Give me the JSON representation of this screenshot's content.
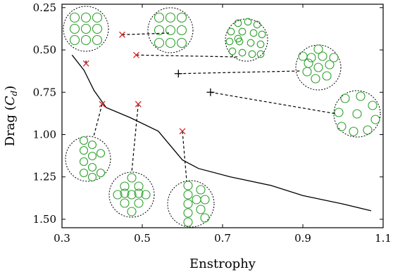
{
  "chart_data": {
    "type": "scatter",
    "title": "",
    "xlabel": "Enstrophy",
    "ylabel_main": "Drag (",
    "ylabel_symbol": "C",
    "ylabel_subscript": "d",
    "ylabel_close": ")",
    "xlim": [
      0.3,
      1.1
    ],
    "ylim": [
      1.55,
      0.23
    ],
    "y_inverted": true,
    "grid": false,
    "x_ticks": [
      0.3,
      0.5,
      0.7,
      0.9,
      1.1
    ],
    "x_tick_labels": [
      "0.3",
      "0.5",
      "0.7",
      "0.9",
      "1.1"
    ],
    "y_ticks": [
      0.25,
      0.5,
      0.75,
      1.0,
      1.25,
      1.5
    ],
    "y_tick_labels": [
      "0.25",
      "0.50",
      "0.75",
      "1.00",
      "1.25",
      "1.50"
    ],
    "frontier_line": {
      "color": "#000000",
      "points": [
        [
          0.325,
          0.53
        ],
        [
          0.355,
          0.62
        ],
        [
          0.38,
          0.74
        ],
        [
          0.41,
          0.84
        ],
        [
          0.47,
          0.9
        ],
        [
          0.54,
          0.98
        ],
        [
          0.6,
          1.15
        ],
        [
          0.64,
          1.2
        ],
        [
          0.72,
          1.25
        ],
        [
          0.82,
          1.3
        ],
        [
          0.9,
          1.36
        ],
        [
          1.0,
          1.41
        ],
        [
          1.07,
          1.45
        ]
      ]
    },
    "series": [
      {
        "marker": "x",
        "color": "#d62728",
        "points": [
          [
            0.36,
            0.58
          ],
          [
            0.45,
            0.41
          ],
          [
            0.485,
            0.53
          ],
          [
            0.4,
            0.82
          ],
          [
            0.49,
            0.82
          ],
          [
            0.6,
            0.98
          ]
        ]
      },
      {
        "marker": "+",
        "color": "#000000",
        "points": [
          [
            0.59,
            0.64
          ],
          [
            0.67,
            0.75
          ]
        ]
      }
    ],
    "configuration_insets": [
      {
        "id": "inset-grid-3x3",
        "circle_color": "#2ca02c",
        "arrangement": "3x3 square",
        "points_to": [
          0.36,
          0.58
        ]
      },
      {
        "id": "inset-rows-3",
        "circle_color": "#2ca02c",
        "arrangement": "three rows of three",
        "points_to": [
          0.45,
          0.41
        ]
      },
      {
        "id": "inset-cluster",
        "circle_color": "#2ca02c",
        "arrangement": "irregular cluster",
        "points_to": [
          0.485,
          0.53
        ]
      },
      {
        "id": "inset-flower",
        "circle_color": "#2ca02c",
        "arrangement": "compact rosette",
        "points_to": [
          0.59,
          0.64
        ]
      },
      {
        "id": "inset-ring",
        "circle_color": "#2ca02c",
        "arrangement": "ring",
        "points_to": [
          0.67,
          0.75
        ]
      },
      {
        "id": "inset-zigzag",
        "circle_color": "#2ca02c",
        "arrangement": "staggered column",
        "points_to": [
          0.4,
          0.82
        ]
      },
      {
        "id": "inset-diamond",
        "circle_color": "#2ca02c",
        "arrangement": "diamond",
        "points_to": [
          0.49,
          0.82
        ]
      },
      {
        "id": "inset-two-columns",
        "circle_color": "#2ca02c",
        "arrangement": "two columns",
        "points_to": [
          0.6,
          0.98
        ]
      }
    ]
  }
}
